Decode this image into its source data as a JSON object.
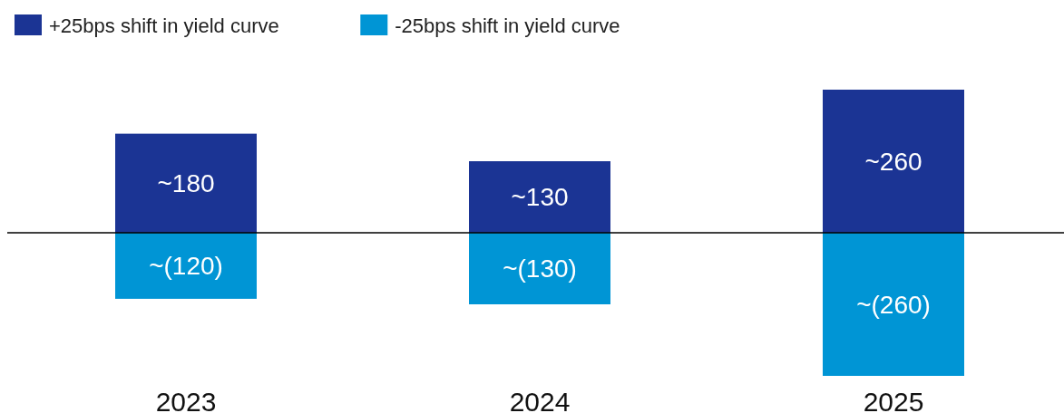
{
  "chart_data": {
    "type": "bar",
    "stacked": true,
    "categories": [
      "2023",
      "2024",
      "2025"
    ],
    "legend": "top left",
    "series": [
      {
        "name": "+25bps shift in yield curve",
        "color": "#1b3494",
        "values": [
          180,
          130,
          260
        ],
        "value_labels": [
          "~180",
          "~130",
          "~260"
        ]
      },
      {
        "name": "-25bps shift in yield curve",
        "color": "#0095d5",
        "values": [
          -120,
          -130,
          -260
        ],
        "value_labels": [
          "~(120)",
          "~(130)",
          "~(260)"
        ]
      }
    ]
  }
}
